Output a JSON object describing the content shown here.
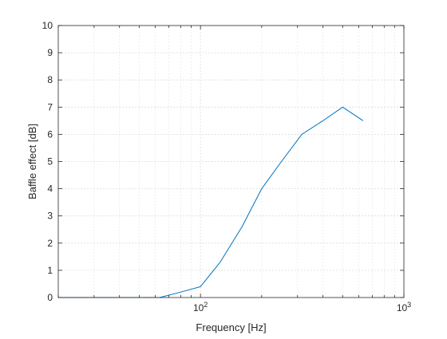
{
  "chart_data": {
    "type": "line",
    "xscale": "log",
    "xlim": [
      20,
      1000
    ],
    "ylim": [
      0,
      10
    ],
    "grid": true,
    "xlabel": "Frequency [Hz]",
    "ylabel": "Baffle effect [dB]",
    "xtick_labels": [
      {
        "base": "10",
        "exp": "2",
        "value": 100
      },
      {
        "base": "10",
        "exp": "3",
        "value": 1000
      }
    ],
    "yticks": [
      0,
      1,
      2,
      3,
      4,
      5,
      6,
      7,
      8,
      9,
      10
    ],
    "series": [
      {
        "color": "#0072BD",
        "x": [
          20,
          25,
          40,
          50,
          63,
          80,
          100,
          125,
          160,
          200,
          250,
          315,
          400,
          500,
          630
        ],
        "y": [
          0,
          0,
          0,
          0,
          0,
          0.2,
          0.4,
          1.3,
          2.6,
          4.0,
          5.0,
          6.0,
          6.5,
          7.0,
          6.5
        ]
      }
    ]
  }
}
